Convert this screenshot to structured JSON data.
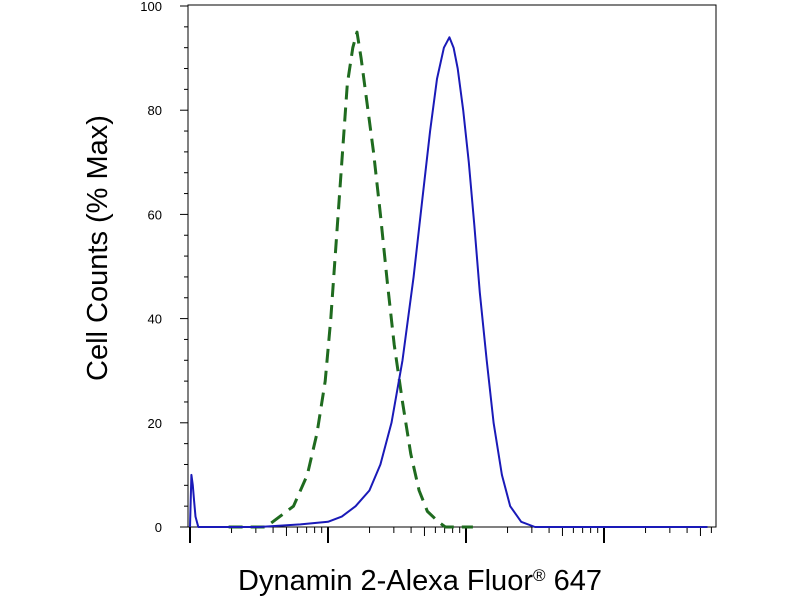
{
  "chart_data": {
    "type": "line",
    "xlabel": "Dynamin 2-Alexa Fluor",
    "xlabel_mark": "®",
    "xlabel_suffix": " 647",
    "ylabel": "Cell Counts (% Max)",
    "x_scale": "log",
    "x_decades": [
      0,
      1,
      2,
      3,
      4
    ],
    "xlim": [
      0,
      3.75
    ],
    "ylim": [
      0,
      100
    ],
    "y_ticks": [
      "0",
      "20",
      "40",
      "60",
      "80",
      "100"
    ],
    "grid": false,
    "series": [
      {
        "color": "#1f6b1f",
        "style": "dashed",
        "points": [
          [
            0.28,
            0
          ],
          [
            0.55,
            0
          ],
          [
            0.75,
            4
          ],
          [
            0.85,
            10
          ],
          [
            0.92,
            18
          ],
          [
            0.98,
            28
          ],
          [
            1.02,
            40
          ],
          [
            1.06,
            55
          ],
          [
            1.1,
            70
          ],
          [
            1.14,
            85
          ],
          [
            1.18,
            92
          ],
          [
            1.21,
            95
          ],
          [
            1.24,
            90
          ],
          [
            1.28,
            82
          ],
          [
            1.33,
            72
          ],
          [
            1.38,
            60
          ],
          [
            1.43,
            47
          ],
          [
            1.48,
            35
          ],
          [
            1.54,
            24
          ],
          [
            1.6,
            14
          ],
          [
            1.66,
            7
          ],
          [
            1.72,
            3
          ],
          [
            1.8,
            1
          ],
          [
            1.85,
            0
          ],
          [
            2.05,
            0
          ]
        ]
      },
      {
        "color": "#1a1ab8",
        "style": "solid",
        "points": [
          [
            0.0,
            0
          ],
          [
            0.01,
            10
          ],
          [
            0.02,
            8
          ],
          [
            0.03,
            5
          ],
          [
            0.04,
            2
          ],
          [
            0.06,
            0
          ],
          [
            0.1,
            0
          ],
          [
            0.5,
            0
          ],
          [
            0.8,
            0.5
          ],
          [
            1.0,
            1
          ],
          [
            1.1,
            2
          ],
          [
            1.2,
            4
          ],
          [
            1.3,
            7
          ],
          [
            1.38,
            12
          ],
          [
            1.46,
            20
          ],
          [
            1.54,
            32
          ],
          [
            1.62,
            48
          ],
          [
            1.68,
            62
          ],
          [
            1.74,
            76
          ],
          [
            1.79,
            86
          ],
          [
            1.84,
            92
          ],
          [
            1.88,
            94
          ],
          [
            1.91,
            92
          ],
          [
            1.94,
            88
          ],
          [
            1.98,
            80
          ],
          [
            2.02,
            70
          ],
          [
            2.06,
            58
          ],
          [
            2.1,
            45
          ],
          [
            2.15,
            32
          ],
          [
            2.2,
            20
          ],
          [
            2.26,
            10
          ],
          [
            2.32,
            4
          ],
          [
            2.4,
            1
          ],
          [
            2.5,
            0
          ],
          [
            3.0,
            0
          ],
          [
            3.75,
            0
          ]
        ]
      }
    ]
  }
}
